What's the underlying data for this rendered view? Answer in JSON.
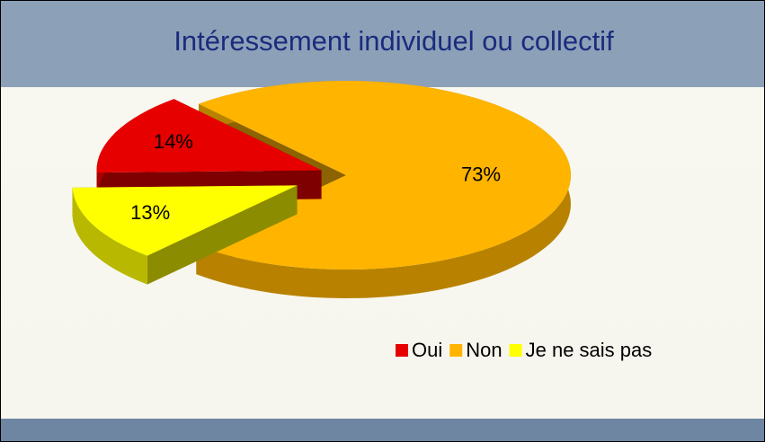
{
  "chart_data": {
    "type": "pie",
    "title": "Intéressement individuel ou collectif",
    "categories": [
      "Oui",
      "Non",
      "Je ne sais pas"
    ],
    "values": [
      14,
      73,
      13
    ],
    "value_labels": [
      "14%",
      "73%",
      "13%"
    ],
    "colors": [
      "#e60000",
      "#ffb400",
      "#ffff00"
    ],
    "legend": "bottom-right"
  }
}
